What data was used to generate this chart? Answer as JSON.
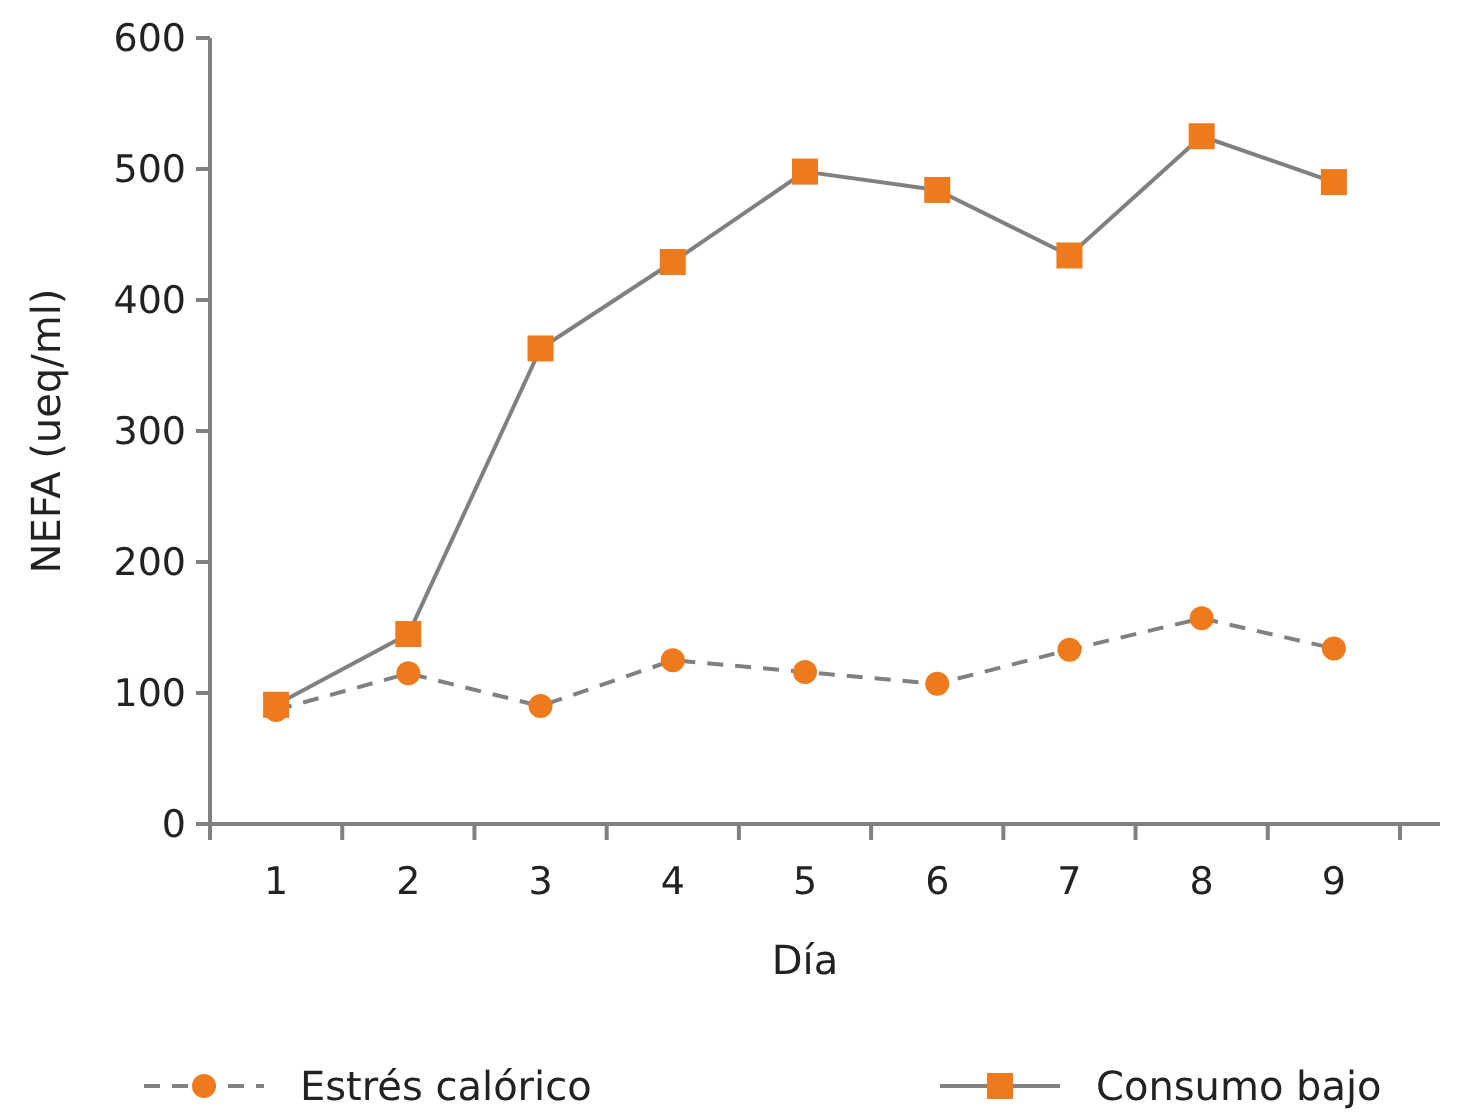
{
  "chart_data": {
    "type": "line",
    "xlabel": "Día",
    "ylabel": "NEFA (ueq/ml)",
    "categories": [
      "1",
      "2",
      "3",
      "4",
      "5",
      "6",
      "7",
      "8",
      "9"
    ],
    "ylim": [
      0,
      600
    ],
    "yticks": [
      0,
      100,
      200,
      300,
      400,
      500,
      600
    ],
    "grid": false,
    "legend": "bottom",
    "series": [
      {
        "name": "Estrés calórico",
        "color": "#ee7a1e",
        "marker": "circle",
        "line_style": "dashed",
        "values": [
          87,
          115,
          90,
          125,
          116,
          107,
          133,
          157,
          134
        ]
      },
      {
        "name": "Consumo bajo",
        "color": "#ee7a1e",
        "marker": "square",
        "line_style": "solid",
        "values": [
          91,
          145,
          363,
          429,
          498,
          484,
          434,
          525,
          490
        ]
      }
    ]
  }
}
